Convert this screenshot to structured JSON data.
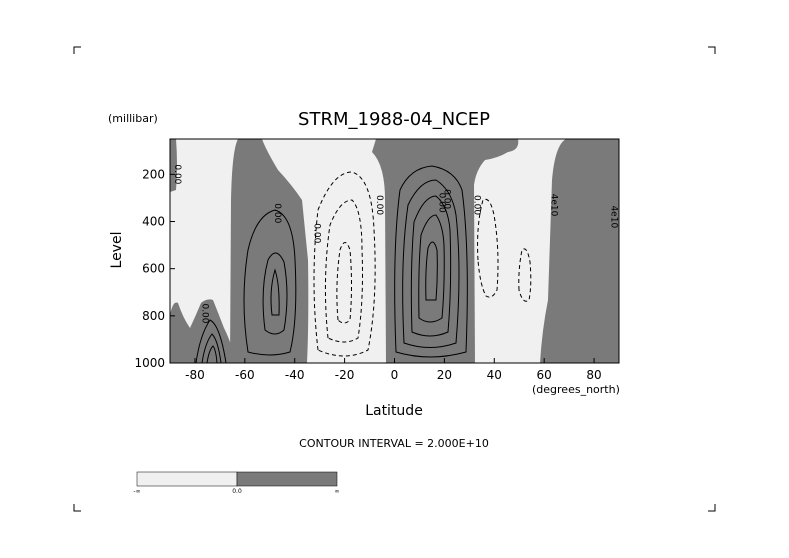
{
  "chart_data": {
    "type": "contour",
    "title": "STRM_1988-04_NCEP",
    "xlabel": "Latitude",
    "ylabel": "Level",
    "x_units": "(degrees_north)",
    "y_units": "(millibar)",
    "xlim": [
      -90,
      90
    ],
    "ylim": [
      1000,
      50
    ],
    "y_inverted": true,
    "x_ticks": [
      -80,
      -60,
      -40,
      -20,
      0,
      20,
      40,
      60,
      80
    ],
    "y_ticks": [
      200,
      400,
      600,
      800,
      1000
    ],
    "contour_interval_text": "CONTOUR INTERVAL = 2.000E+10",
    "contour_interval": 20000000000,
    "contour_labels": [
      "0.00",
      "0.00",
      "0.00",
      "0.00",
      "0.00",
      "0.00",
      "0.00",
      "0.00",
      "4e10",
      "4e10"
    ],
    "fill_negative_color": "#f0f0f0",
    "fill_positive_color": "#7a7a7a",
    "colorbar_labels": [
      "-∞",
      "0.0",
      "∞"
    ],
    "positive_regions": [
      {
        "name": "south-polar-pos",
        "lat_range": [
          -90,
          -68
        ],
        "level_range": [
          720,
          1000
        ]
      },
      {
        "name": "southern-cell",
        "lat_range": [
          -64,
          -38
        ],
        "level_range": [
          50,
          1000
        ],
        "peak_lat": -50,
        "peak_level": 650
      },
      {
        "name": "tropical-cell",
        "lat_range": [
          -7,
          35
        ],
        "level_range": [
          50,
          1000
        ],
        "peak_lat": 12,
        "peak_level": 480
      },
      {
        "name": "northern-pos",
        "lat_range": [
          57,
          90
        ],
        "level_range": [
          50,
          1000
        ]
      }
    ],
    "negative_regions": [
      {
        "name": "southern-ferrel",
        "lat_range": [
          -38,
          -7
        ],
        "peak_lat": -22,
        "peak_level": 500
      },
      {
        "name": "northern-ferrel-1",
        "lat_range": [
          35,
          50
        ],
        "peak_lat": 42,
        "peak_level": 450
      },
      {
        "name": "northern-ferrel-2",
        "lat_range": [
          50,
          57
        ],
        "peak_lat": 53,
        "peak_level": 600
      }
    ]
  }
}
